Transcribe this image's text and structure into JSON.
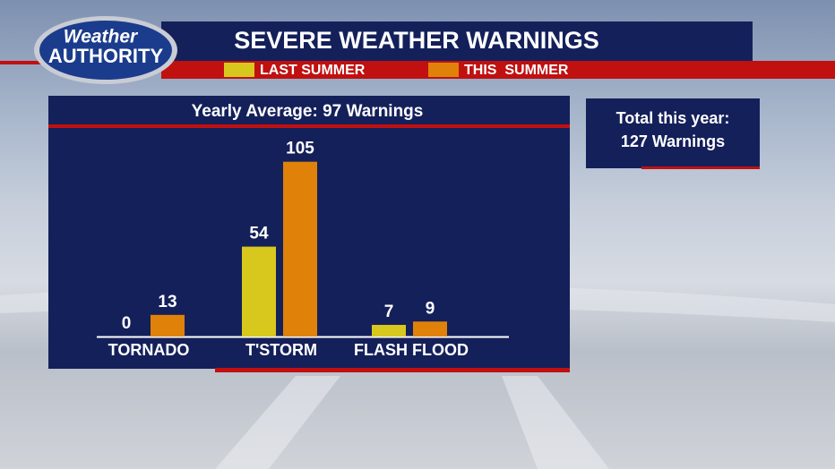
{
  "logo": {
    "line1": "Weather",
    "line2": "AUTHORITY"
  },
  "chart_data": {
    "type": "bar",
    "title": "SEVERE WEATHER WARNINGS",
    "subtitle": "Yearly Average: 97 Warnings",
    "annotation": [
      "Total this year:",
      "127 Warnings"
    ],
    "categories": [
      "TORNADO",
      "T'STORM",
      "FLASH FLOOD"
    ],
    "series": [
      {
        "name": "LAST SUMMER",
        "color": "#d8c81e",
        "values": [
          0,
          54,
          7
        ]
      },
      {
        "name": "THIS  SUMMER",
        "color": "#e0820a",
        "values": [
          13,
          105,
          9
        ]
      }
    ]
  }
}
